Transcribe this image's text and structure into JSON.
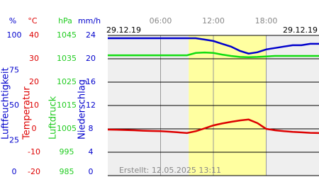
{
  "chart_data": {
    "type": "line",
    "date_left": "29.12.19",
    "date_right": "29.12.19",
    "credit": "Erstellt: 12.05.2025 13:11",
    "xlim": [
      0,
      24
    ],
    "xticks": [
      {
        "value": 6,
        "label": "06:00"
      },
      {
        "value": 12,
        "label": "12:00"
      },
      {
        "value": 18,
        "label": "18:00"
      }
    ],
    "highlight": [
      9.2,
      18
    ],
    "grid_axis": 3,
    "axes": [
      {
        "unit": "%",
        "label": "Luftfeuchtigkeit",
        "color": "#0000cc",
        "ylim": [
          0,
          100
        ],
        "yticks": [
          0,
          25,
          50,
          75,
          100
        ]
      },
      {
        "unit": "°C",
        "label": "Temperatur",
        "color": "#dd0000",
        "ylim": [
          -20,
          40
        ],
        "yticks": [
          -20,
          -10,
          0,
          10,
          20,
          30,
          40
        ]
      },
      {
        "unit": "hPa",
        "label": "Luftdruck",
        "color": "#22cc22",
        "ylim": [
          985,
          1045
        ],
        "yticks": [
          985,
          995,
          1005,
          1015,
          1025,
          1035,
          1045
        ]
      },
      {
        "unit": "mm/h",
        "label": "Niederschlag",
        "color": "#0000cc",
        "ylim": [
          0,
          24
        ],
        "yticks": [
          0,
          4,
          8,
          12,
          16,
          20,
          24
        ]
      }
    ],
    "x": [
      0,
      1,
      2,
      3,
      4,
      5,
      6,
      7,
      8,
      9,
      10,
      11,
      12,
      13,
      14,
      15,
      16,
      17,
      18,
      19,
      20,
      21,
      22,
      23,
      24
    ],
    "series": [
      {
        "axis": 0,
        "color": "#0000cc",
        "values": [
          98,
          98,
          98,
          98,
          98,
          98,
          98,
          98,
          98,
          98,
          98,
          97,
          96,
          94,
          92,
          89,
          87,
          88,
          90,
          91,
          92,
          93,
          93,
          94,
          94
        ]
      },
      {
        "axis": 2,
        "color": "#11dd11",
        "values": [
          1036.5,
          1036.5,
          1036.5,
          1036.5,
          1036.5,
          1036.5,
          1036.5,
          1036.5,
          1036.5,
          1036.5,
          1037.5,
          1037.7,
          1037.5,
          1036.8,
          1036.2,
          1035.8,
          1035.7,
          1035.8,
          1036.0,
          1036.2,
          1036.2,
          1036.2,
          1036.2,
          1036.2,
          1036.2
        ]
      },
      {
        "axis": 1,
        "color": "#dd0000",
        "values": [
          -0.3,
          -0.4,
          -0.5,
          -0.6,
          -0.8,
          -0.9,
          -1.0,
          -1.2,
          -1.5,
          -1.8,
          -1.0,
          0.2,
          1.5,
          2.3,
          3.0,
          3.6,
          4.0,
          2.5,
          0.0,
          -0.6,
          -1.0,
          -1.3,
          -1.5,
          -1.7,
          -1.8
        ]
      }
    ]
  }
}
